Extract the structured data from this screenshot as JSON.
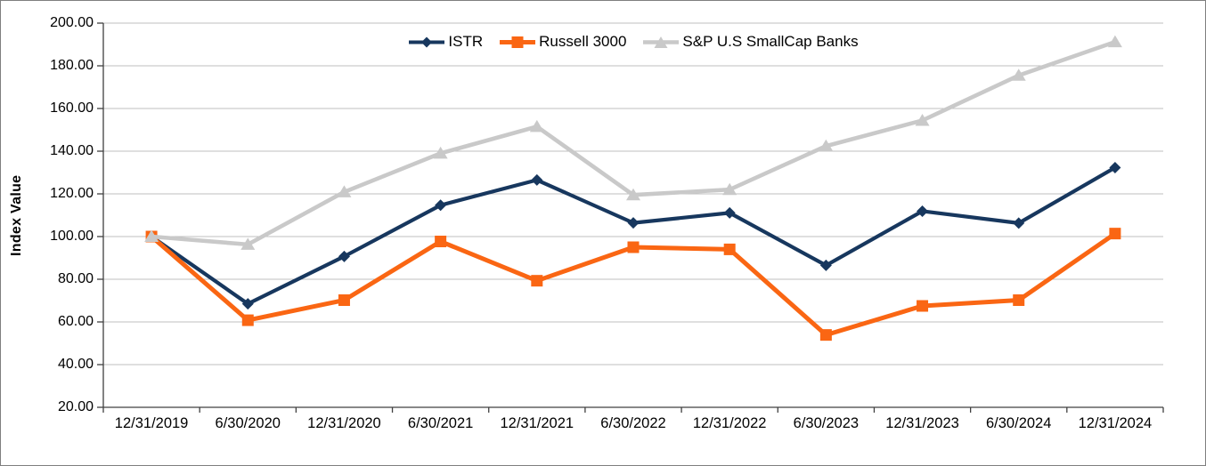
{
  "chart_data": {
    "type": "line",
    "title": "",
    "ylabel": "Index Value",
    "xlabel": "",
    "ylim": [
      20,
      200
    ],
    "y_tick_step": 20,
    "y_tick_labels": [
      "200.00",
      "180.00",
      "160.00",
      "140.00",
      "120.00",
      "100.00",
      "80.00",
      "60.00",
      "40.00",
      "20.00"
    ],
    "grid": "horizontal",
    "legend_position": "top-center",
    "categories": [
      "12/31/2019",
      "6/30/2020",
      "12/31/2020",
      "6/30/2021",
      "12/31/2021",
      "6/30/2022",
      "12/31/2022",
      "6/30/2023",
      "12/31/2023",
      "6/30/2024",
      "12/31/2024"
    ],
    "series": [
      {
        "name": "ISTR",
        "marker": "diamond",
        "color": "#17375E",
        "values": [
          100.0,
          68.5,
          90.7,
          114.7,
          126.5,
          106.4,
          111.1,
          86.5,
          111.9,
          106.3,
          132.3
        ]
      },
      {
        "name": "Russell 3000",
        "marker": "square",
        "color": "#FA6613",
        "values": [
          100.0,
          60.8,
          70.2,
          97.7,
          79.3,
          95.0,
          94.0,
          53.9,
          67.5,
          70.2,
          101.4
        ]
      },
      {
        "name": "S&P U.S SmallCap Banks",
        "marker": "triangle",
        "color": "#C9C9C9",
        "values": [
          100.0,
          96.3,
          120.9,
          139.0,
          151.5,
          119.5,
          122.0,
          142.4,
          154.4,
          175.5,
          191.2
        ]
      }
    ],
    "axis_color": "#404040",
    "gridline_color": "#BFBFBF",
    "frame_border_color": "#7F7F7F"
  }
}
